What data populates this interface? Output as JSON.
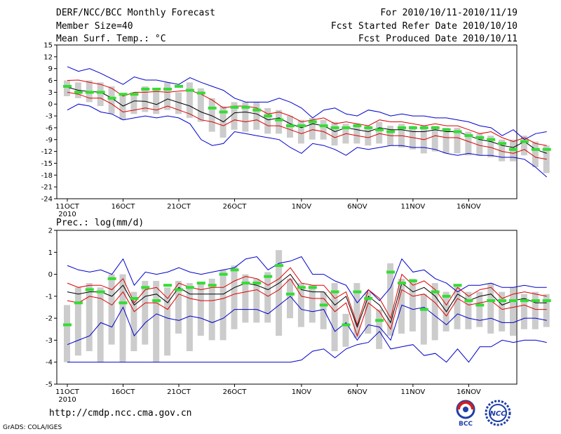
{
  "header": {
    "title": "DERF/NCC/BCC Monthly Forecast",
    "member_size": "Member Size=40",
    "variable": "Mean Surf. Temp.: °C",
    "period": "For 2010/10/11-2010/11/19",
    "started": "Fcst Started Refer Date 2010/10/10",
    "produced": "Fcst Produced Date 2010/10/11"
  },
  "footer": {
    "url": "http://cmdp.ncc.cma.gov.cn",
    "grads": "GrADS: COLA/IGES",
    "logo_left": "BCC",
    "logo_right": "NCC"
  },
  "colors": {
    "envelope": "#0000cc",
    "spread": "#dd0000",
    "mean": "#000000",
    "box": "#cccccc",
    "observed": "#33dd33"
  },
  "chart_data": [
    {
      "type": "line",
      "title": "Mean Surf. Temp.: °C",
      "x_tick_labels": [
        "11OCT",
        "16OCT",
        "21OCT",
        "26OCT",
        "1NOV",
        "6NOV",
        "11NOV",
        "16NOV"
      ],
      "x_tick_days": [
        0,
        5,
        10,
        15,
        21,
        26,
        31,
        36
      ],
      "year_label": "2010",
      "ylim": [
        -24,
        15
      ],
      "y_ticks": [
        15,
        12,
        9,
        6,
        3,
        0,
        -3,
        -6,
        -9,
        -12,
        -15,
        -18,
        -21,
        -24
      ],
      "series": [
        {
          "name": "max",
          "values": [
            9.5,
            8.3,
            9.0,
            7.8,
            6.4,
            5.0,
            6.9,
            6.1,
            6.1,
            5.5,
            5.0,
            6.7,
            5.5,
            4.5,
            3.5,
            1.5,
            0.5,
            0.5,
            0.5,
            1.5,
            0.5,
            -1.0,
            -3.5,
            -1.5,
            -1.0,
            -2.5,
            -3.0,
            -1.5,
            -2.0,
            -3.0,
            -2.5,
            -3.0,
            -3.0,
            -3.5,
            -3.5,
            -4.0,
            -4.5,
            -5.5,
            -6.0,
            -8.0,
            -6.5,
            -9.0,
            -7.5,
            -7.0
          ]
        },
        {
          "name": "upper",
          "values": [
            6.0,
            6.1,
            5.5,
            5.0,
            4.0,
            2.0,
            3.0,
            3.0,
            3.2,
            3.0,
            3.3,
            3.5,
            2.5,
            1.0,
            -1.0,
            -0.5,
            -0.5,
            -1.0,
            -2.5,
            -2.0,
            -3.0,
            -4.5,
            -4.0,
            -3.5,
            -5.0,
            -4.5,
            -5.0,
            -5.5,
            -4.0,
            -4.5,
            -4.5,
            -5.0,
            -5.5,
            -5.0,
            -5.5,
            -5.5,
            -6.5,
            -7.5,
            -7.0,
            -8.5,
            -9.5,
            -8.5,
            -10.0,
            -10.5
          ]
        },
        {
          "name": "mean",
          "values": [
            4.3,
            3.5,
            3.2,
            3.0,
            1.5,
            -0.5,
            0.8,
            0.7,
            -0.1,
            1.3,
            0.4,
            -0.5,
            -2.0,
            -3.0,
            -4.5,
            -2.2,
            -2.0,
            -2.5,
            -4.0,
            -3.5,
            -5.0,
            -6.0,
            -5.0,
            -5.5,
            -7.0,
            -6.0,
            -6.5,
            -7.0,
            -6.0,
            -6.5,
            -6.5,
            -7.0,
            -7.0,
            -6.5,
            -7.0,
            -7.0,
            -8.0,
            -9.0,
            -9.5,
            -10.5,
            -11.0,
            -9.5,
            -11.5,
            -12.5
          ]
        },
        {
          "name": "lower",
          "values": [
            3.0,
            2.5,
            1.5,
            1.5,
            0.0,
            -2.0,
            -1.5,
            -1.0,
            -1.5,
            -0.5,
            -1.5,
            -2.5,
            -4.0,
            -4.5,
            -5.5,
            -4.0,
            -4.5,
            -4.0,
            -5.5,
            -5.5,
            -6.5,
            -7.5,
            -6.5,
            -7.0,
            -8.5,
            -7.5,
            -8.0,
            -8.5,
            -7.5,
            -8.0,
            -8.0,
            -8.5,
            -9.0,
            -8.0,
            -8.5,
            -8.5,
            -9.5,
            -10.5,
            -11.0,
            -12.0,
            -12.5,
            -11.5,
            -13.5,
            -14.0
          ]
        },
        {
          "name": "min",
          "values": [
            -1.5,
            0.0,
            -0.5,
            -2.0,
            -2.5,
            -4.0,
            -3.5,
            -3.0,
            -3.5,
            -3.0,
            -3.5,
            -5.0,
            -9.0,
            -10.5,
            -10.0,
            -7.0,
            -7.5,
            -8.0,
            -8.5,
            -9.0,
            -11.0,
            -12.5,
            -10.0,
            -10.5,
            -11.5,
            -13.0,
            -11.0,
            -11.5,
            -11.0,
            -10.5,
            -10.5,
            -11.0,
            -11.0,
            -11.5,
            -12.5,
            -13.0,
            -12.5,
            -13.0,
            -13.0,
            -13.5,
            -13.5,
            -14.0,
            -16.0,
            -18.5
          ]
        },
        {
          "name": "observed",
          "values": [
            4.5,
            3.0,
            3.0,
            3.0,
            1.5,
            2.5,
            2.5,
            3.8,
            3.8,
            3.8,
            4.5,
            3.5,
            2.8,
            -1.0,
            -2.0,
            -0.8,
            -0.8,
            -1.5,
            -3.0,
            -4.0,
            -5.5,
            -5.5,
            -4.5,
            -5.5,
            -6.0,
            -6.0,
            -5.5,
            -6.0,
            -6.5,
            -7.0,
            -6.0,
            -6.0,
            -6.0,
            -6.0,
            -6.5,
            -7.0,
            -8.0,
            -8.5,
            -9.0,
            -10.0,
            -11.5,
            -9.5,
            -11.5,
            -11.5
          ]
        }
      ],
      "box_ranges": [
        [
          2.0,
          6.0
        ],
        [
          1.5,
          5.5
        ],
        [
          0.5,
          6.0
        ],
        [
          -0.5,
          5.5
        ],
        [
          -2.5,
          4.5
        ],
        [
          -4.0,
          2.5
        ],
        [
          -2.5,
          3.0
        ],
        [
          -2.0,
          4.5
        ],
        [
          -2.5,
          3.5
        ],
        [
          -1.5,
          5.5
        ],
        [
          -2.5,
          3.0
        ],
        [
          -3.5,
          5.5
        ],
        [
          -4.5,
          4.0
        ],
        [
          -7.0,
          1.5
        ],
        [
          -8.5,
          -0.5
        ],
        [
          -6.5,
          0.5
        ],
        [
          -7.0,
          0.5
        ],
        [
          -6.5,
          0.5
        ],
        [
          -7.5,
          -1.0
        ],
        [
          -7.5,
          -1.5
        ],
        [
          -8.5,
          -3.0
        ],
        [
          -10.0,
          -4.0
        ],
        [
          -9.0,
          -3.5
        ],
        [
          -9.0,
          -4.0
        ],
        [
          -10.5,
          -4.5
        ],
        [
          -10.0,
          -5.0
        ],
        [
          -10.0,
          -5.0
        ],
        [
          -10.5,
          -5.5
        ],
        [
          -10.0,
          -4.5
        ],
        [
          -10.5,
          -5.5
        ],
        [
          -11.0,
          -5.0
        ],
        [
          -11.5,
          -5.5
        ],
        [
          -12.5,
          -5.5
        ],
        [
          -12.0,
          -5.5
        ],
        [
          -12.5,
          -6.0
        ],
        [
          -12.5,
          -6.0
        ],
        [
          -13.0,
          -7.0
        ],
        [
          -13.0,
          -7.5
        ],
        [
          -13.5,
          -8.0
        ],
        [
          -14.5,
          -9.0
        ],
        [
          -14.5,
          -9.0
        ],
        [
          -13.0,
          -8.0
        ],
        [
          -16.0,
          -9.5
        ],
        [
          -17.5,
          -10.5
        ]
      ]
    },
    {
      "type": "line",
      "title": "Prec.: log(mm/d)",
      "x_tick_labels": [
        "11OCT",
        "16OCT",
        "21OCT",
        "26OCT",
        "1NOV",
        "6NOV",
        "11NOV",
        "16NOV"
      ],
      "x_tick_days": [
        0,
        5,
        10,
        15,
        21,
        26,
        31,
        36
      ],
      "year_label": "2010",
      "ylim": [
        -5,
        2
      ],
      "y_ticks": [
        2,
        1,
        0,
        -1,
        -2,
        -3,
        -4,
        -5
      ],
      "series": [
        {
          "name": "max",
          "values": [
            0.4,
            0.2,
            0.1,
            0.2,
            0.0,
            0.7,
            -0.5,
            0.1,
            0.0,
            0.1,
            0.3,
            0.1,
            0.0,
            0.1,
            0.2,
            0.3,
            0.7,
            0.8,
            0.2,
            0.5,
            0.6,
            0.8,
            0.0,
            0.0,
            -0.3,
            -0.5,
            -1.3,
            -0.7,
            -1.2,
            -0.6,
            0.7,
            0.1,
            0.2,
            -0.2,
            -0.4,
            -0.8,
            -0.5,
            -0.5,
            -0.4,
            -0.6,
            -0.6,
            -0.5,
            -0.6,
            -0.6
          ]
        },
        {
          "name": "upper",
          "values": [
            -0.4,
            -0.6,
            -0.5,
            -0.5,
            -0.7,
            -0.2,
            -1.3,
            -0.7,
            -0.6,
            -1.1,
            -0.4,
            -0.6,
            -0.7,
            -0.6,
            -0.6,
            -0.3,
            -0.1,
            -0.2,
            -0.5,
            -0.2,
            0.3,
            -0.4,
            -0.5,
            -0.5,
            -1.1,
            -0.8,
            -2.3,
            -0.7,
            -1.1,
            -2.0,
            0.0,
            -0.5,
            -0.3,
            -0.7,
            -1.4,
            -0.6,
            -1.0,
            -0.7,
            -0.6,
            -1.1,
            -0.9,
            -0.8,
            -0.9,
            -1.0
          ]
        },
        {
          "name": "mean",
          "values": [
            -0.8,
            -0.9,
            -0.8,
            -0.8,
            -1.0,
            -0.5,
            -1.4,
            -1.0,
            -0.9,
            -1.3,
            -0.6,
            -0.9,
            -0.9,
            -0.9,
            -0.9,
            -0.6,
            -0.4,
            -0.5,
            -0.7,
            -0.4,
            0.0,
            -0.7,
            -0.8,
            -0.8,
            -1.4,
            -1.0,
            -2.4,
            -1.0,
            -1.4,
            -2.2,
            -0.4,
            -0.8,
            -0.6,
            -1.0,
            -1.7,
            -0.9,
            -1.2,
            -1.0,
            -0.9,
            -1.4,
            -1.2,
            -1.1,
            -1.3,
            -1.3
          ]
        },
        {
          "name": "lower",
          "values": [
            -1.2,
            -1.3,
            -1.0,
            -1.1,
            -1.4,
            -0.8,
            -1.7,
            -1.3,
            -1.3,
            -1.6,
            -0.9,
            -1.1,
            -1.2,
            -1.2,
            -1.1,
            -0.9,
            -0.8,
            -0.7,
            -1.0,
            -0.7,
            -0.2,
            -1.0,
            -1.1,
            -1.1,
            -1.7,
            -1.3,
            -2.8,
            -1.3,
            -1.7,
            -2.5,
            -0.7,
            -1.0,
            -0.9,
            -1.3,
            -1.9,
            -1.1,
            -1.4,
            -1.3,
            -1.2,
            -1.6,
            -1.5,
            -1.4,
            -1.6,
            -1.6
          ]
        },
        {
          "name": "min",
          "values": [
            -3.2,
            -3.0,
            -2.8,
            -2.2,
            -2.4,
            -1.5,
            -2.8,
            -2.2,
            -1.8,
            -2.0,
            -2.1,
            -1.9,
            -2.0,
            -2.2,
            -2.0,
            -1.6,
            -1.6,
            -1.6,
            -1.8,
            -1.4,
            -1.0,
            -1.6,
            -1.7,
            -1.6,
            -2.6,
            -2.2,
            -3.0,
            -2.3,
            -2.4,
            -3.0,
            -1.4,
            -1.6,
            -1.5,
            -1.9,
            -2.3,
            -1.8,
            -2.0,
            -2.1,
            -2.0,
            -2.2,
            -2.2,
            -2.0,
            -2.0,
            -2.1
          ]
        },
        {
          "name": "envelope_min",
          "values": [
            -4.0,
            -4.0,
            -4.0,
            -4.0,
            -4.0,
            -4.0,
            -4.0,
            -4.0,
            -4.0,
            -4.0,
            -4.0,
            -4.0,
            -4.0,
            -4.0,
            -4.0,
            -4.0,
            -4.0,
            -4.0,
            -4.0,
            -4.0,
            -4.0,
            -3.9,
            -3.5,
            -3.4,
            -3.8,
            -3.4,
            -3.2,
            -3.1,
            -2.6,
            -3.4,
            -3.3,
            -3.2,
            -3.7,
            -3.6,
            -4.0,
            -3.4,
            -4.0,
            -3.3,
            -3.3,
            -3.0,
            -3.1,
            -3.0,
            -3.0,
            -3.1
          ]
        },
        {
          "name": "observed",
          "values": [
            -2.3,
            -1.3,
            -0.7,
            -0.8,
            -0.2,
            -1.3,
            -1.1,
            -0.6,
            -1.2,
            -0.5,
            -0.7,
            -0.6,
            -0.4,
            -0.5,
            0.0,
            0.2,
            -0.4,
            -0.4,
            -0.1,
            0.4,
            -0.9,
            -0.6,
            -0.6,
            -1.4,
            -0.8,
            -2.3,
            -0.8,
            -1.1,
            -2.1,
            0.1,
            -0.4,
            -0.3,
            -1.6,
            -0.8,
            -1.0,
            -0.5,
            -1.2,
            -1.4,
            -1.2,
            -1.2,
            -1.2,
            -1.2,
            -1.2,
            -1.2
          ]
        }
      ],
      "box_ranges": [
        [
          -4.0,
          -1.4
        ],
        [
          -3.7,
          -0.6
        ],
        [
          -3.5,
          -0.4
        ],
        [
          -4.0,
          -0.6
        ],
        [
          -3.2,
          0.0
        ],
        [
          -4.0,
          0.0
        ],
        [
          -3.5,
          -0.8
        ],
        [
          -3.2,
          -0.3
        ],
        [
          -4.0,
          -0.3
        ],
        [
          -3.7,
          -0.6
        ],
        [
          -2.7,
          -0.3
        ],
        [
          -3.5,
          -0.4
        ],
        [
          -2.8,
          -0.4
        ],
        [
          -3.0,
          -0.2
        ],
        [
          -3.0,
          0.2
        ],
        [
          -2.5,
          0.4
        ],
        [
          -2.2,
          0.0
        ],
        [
          -2.2,
          -0.2
        ],
        [
          -2.2,
          0.1
        ],
        [
          -2.8,
          1.1
        ],
        [
          -2.0,
          -0.2
        ],
        [
          -2.4,
          -0.4
        ],
        [
          -2.2,
          -0.5
        ],
        [
          -2.5,
          -0.8
        ],
        [
          -3.5,
          -0.4
        ],
        [
          -3.3,
          -1.8
        ],
        [
          -2.9,
          -0.4
        ],
        [
          -2.7,
          -0.8
        ],
        [
          -3.4,
          -1.6
        ],
        [
          -2.8,
          0.5
        ],
        [
          -2.7,
          -0.2
        ],
        [
          -2.6,
          -0.2
        ],
        [
          -3.2,
          -0.9
        ],
        [
          -3.0,
          -0.4
        ],
        [
          -2.6,
          -0.8
        ],
        [
          -2.5,
          -0.5
        ],
        [
          -2.5,
          -0.8
        ],
        [
          -2.4,
          -0.8
        ],
        [
          -2.7,
          -0.4
        ],
        [
          -2.6,
          -0.8
        ],
        [
          -2.8,
          -0.6
        ],
        [
          -2.5,
          -0.9
        ],
        [
          -2.5,
          -0.8
        ],
        [
          -2.4,
          -0.9
        ]
      ]
    }
  ]
}
